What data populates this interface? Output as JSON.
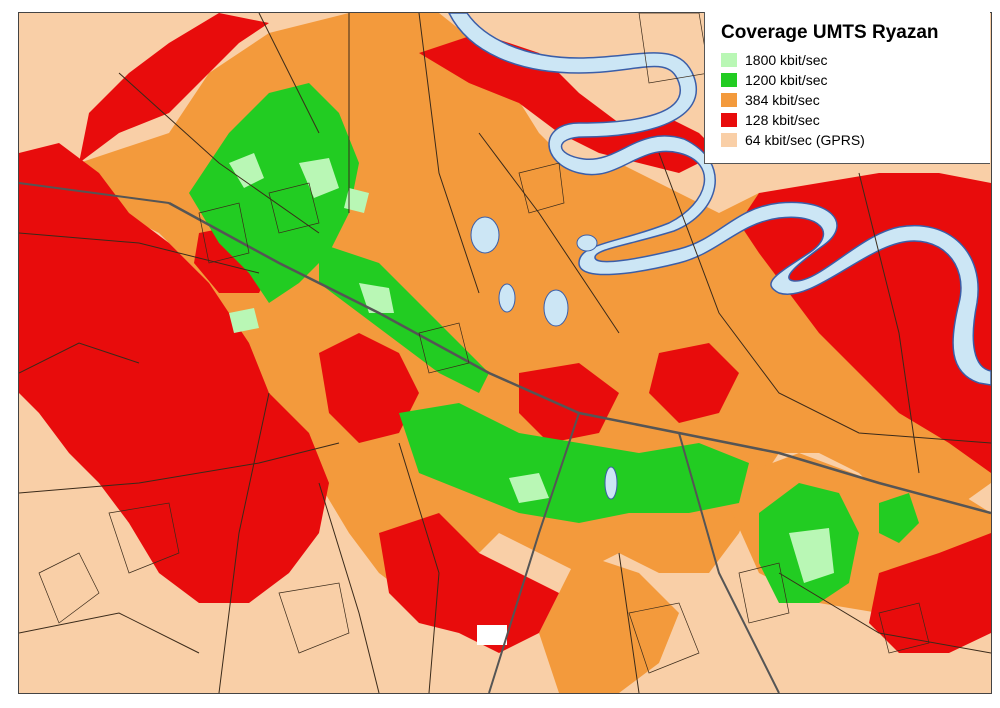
{
  "legend": {
    "title": "Coverage UMTS Ryazan",
    "items": [
      {
        "label": "1800 kbit/sec",
        "color": "#b9f7b5"
      },
      {
        "label": "1200 kbit/sec",
        "color": "#22cc22"
      },
      {
        "label": "384 kbit/sec",
        "color": "#f39a3c"
      },
      {
        "label": "128 kbit/sec",
        "color": "#e80c0c"
      },
      {
        "label": "64 kbit/sec (GPRS)",
        "color": "#f9cfa7"
      }
    ]
  },
  "map_colors": {
    "base": "#f9cfa7",
    "rate_384": "#f39a3c",
    "rate_128": "#e80c0c",
    "rate_1200": "#22cc22",
    "rate_1800": "#b9f7b5",
    "river": "#cce6f5",
    "river_edge": "#3b5ea8",
    "road": "#3a2a1a",
    "railway": "#555555",
    "water": "#cce6f5"
  }
}
